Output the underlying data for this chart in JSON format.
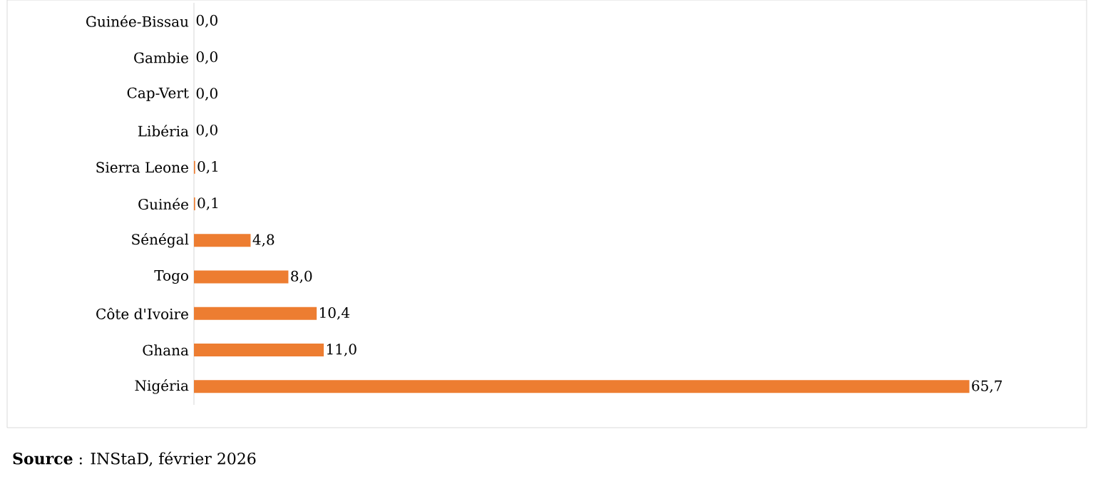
{
  "chart_data": {
    "type": "bar",
    "orientation": "horizontal",
    "color": "#ed7d31",
    "categories": [
      "Guinée-Bissau",
      "Gambie",
      "Cap-Vert",
      "Libéria",
      "Sierra Leone",
      "Guinée",
      "Sénégal",
      "Togo",
      "Côte d'Ivoire",
      "Ghana",
      "Nigéria"
    ],
    "values": [
      0.0,
      0.0,
      0.0,
      0.0,
      0.1,
      0.1,
      4.8,
      8.0,
      10.4,
      11.0,
      65.7
    ],
    "value_labels": [
      "0,0",
      "0,0",
      "0,0",
      "0,0",
      "0,1",
      "0,1",
      "4,8",
      "8,0",
      "10,4",
      "11,0",
      "65,7"
    ],
    "annotations": [
      "**Source** : INStaD, février 2026"
    ]
  }
}
